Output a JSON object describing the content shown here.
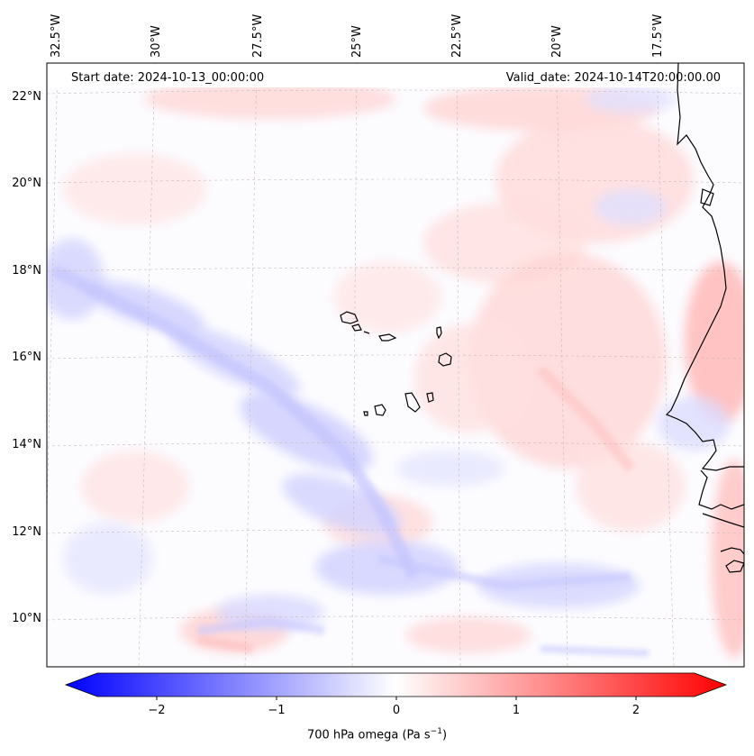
{
  "header": {
    "start_date": "Start date: 2024-10-13_00:00:00",
    "valid_date": "Valid_date: 2024-10-14T20:00:00.00"
  },
  "map": {
    "lon_labels": [
      "32.5°W",
      "30°W",
      "27.5°W",
      "25°W",
      "22.5°W",
      "20°W",
      "17.5°W"
    ],
    "lat_labels": [
      "22°N",
      "20°N",
      "18°N",
      "16°N",
      "14°N",
      "12°N",
      "10°N"
    ],
    "field": "700 hPa omega",
    "colormap": "bwr"
  },
  "colorbar": {
    "ticks": [
      "−2",
      "−1",
      "0",
      "1",
      "2"
    ],
    "tick_values": [
      -2,
      -1,
      0,
      1,
      2
    ],
    "range": [
      -2.6,
      2.6
    ],
    "label": "700 hPa omega (Pa s",
    "label_sup": "−1",
    "label_close": ")",
    "colors": {
      "neg": "#0000ff",
      "mid": "#ffffff",
      "pos": "#ff0000"
    }
  }
}
